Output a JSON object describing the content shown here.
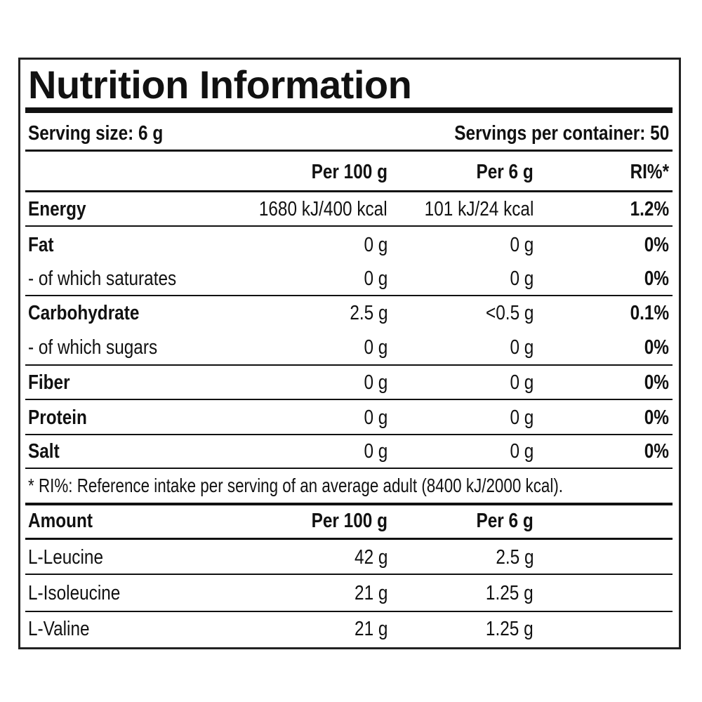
{
  "title": "Nutrition Information",
  "serving_size": "Serving size: 6 g",
  "servings_per_container": "Servings per container: 50",
  "headers": {
    "per100": "Per 100 g",
    "per6": "Per 6 g",
    "ri": "RI%*"
  },
  "nutrients": [
    {
      "name": "Energy",
      "per100": "1680 kJ/400 kcal",
      "per6": "101 kJ/24 kcal",
      "ri": "1.2%",
      "bold": true
    },
    {
      "name": "Fat",
      "per100": "0 g",
      "per6": "0 g",
      "ri": "0%",
      "bold": true
    },
    {
      "name": "- of which saturates",
      "per100": "0 g",
      "per6": "0 g",
      "ri": "0%",
      "bold": false
    },
    {
      "name": "Carbohydrate",
      "per100": "2.5 g",
      "per6": "<0.5 g",
      "ri": "0.1%",
      "bold": true
    },
    {
      "name": "- of which sugars",
      "per100": "0 g",
      "per6": "0 g",
      "ri": "0%",
      "bold": false
    },
    {
      "name": "Fiber",
      "per100": "0 g",
      "per6": "0 g",
      "ri": "0%",
      "bold": true
    },
    {
      "name": "Protein",
      "per100": "0 g",
      "per6": "0 g",
      "ri": "0%",
      "bold": true
    },
    {
      "name": "Salt",
      "per100": "0 g",
      "per6": "0 g",
      "ri": "0%",
      "bold": true
    }
  ],
  "footnote": "* RI%: Reference intake per serving of an average adult (8400 kJ/2000 kcal).",
  "amount_headers": {
    "name": "Amount",
    "per100": "Per 100 g",
    "per6": "Per 6 g"
  },
  "amino_acids": [
    {
      "name": "L-Leucine",
      "per100": "42 g",
      "per6": "2.5 g"
    },
    {
      "name": "L-Isoleucine",
      "per100": "21 g",
      "per6": "1.25 g"
    },
    {
      "name": "L-Valine",
      "per100": "21 g",
      "per6": "1.25 g"
    }
  ]
}
